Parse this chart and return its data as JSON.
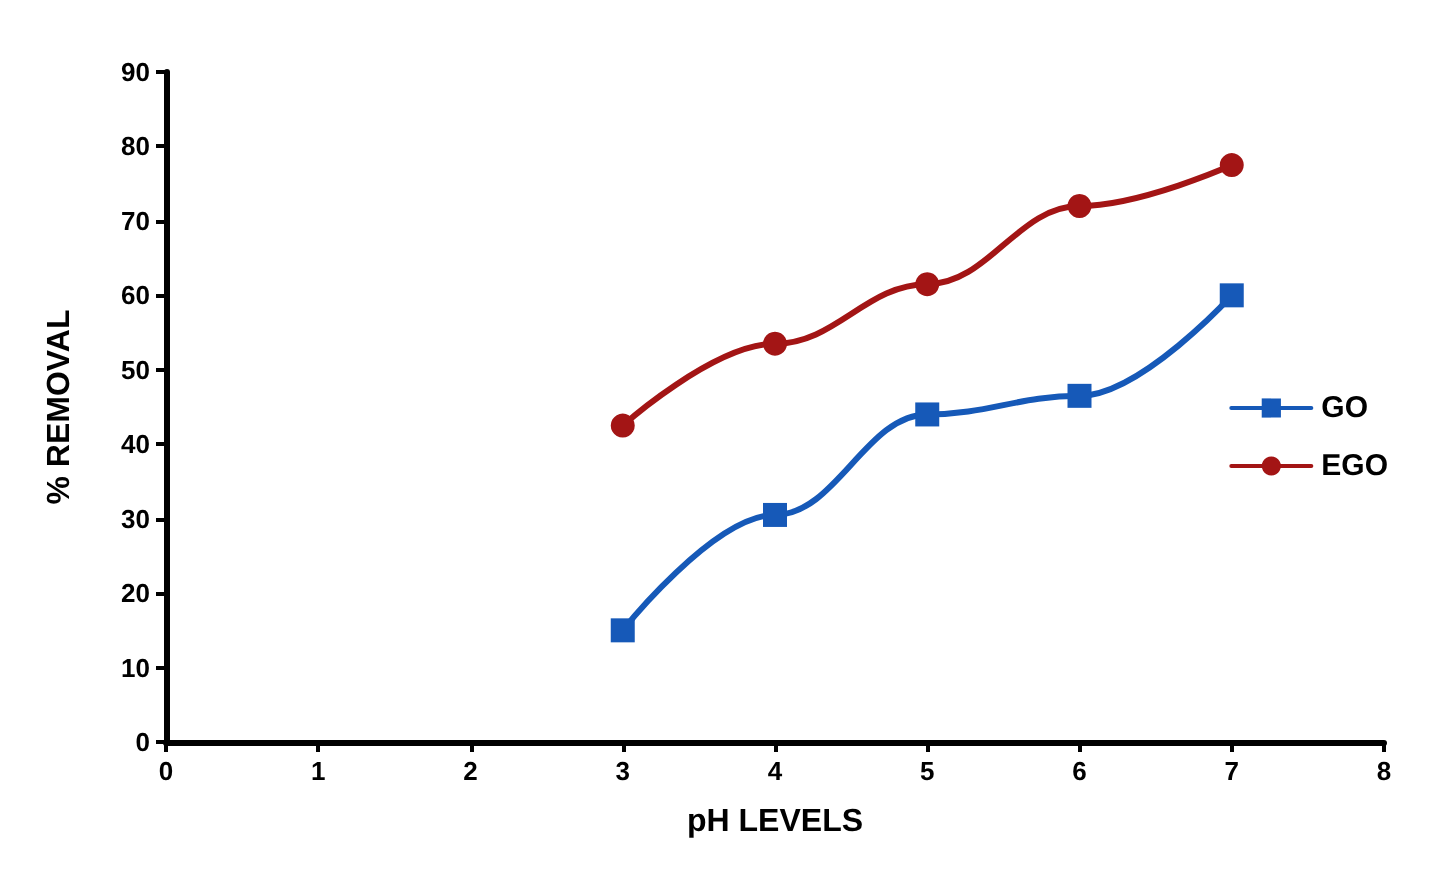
{
  "chart_data": {
    "type": "line",
    "xlabel": "pH LEVELS",
    "ylabel": "% REMOVAL",
    "x": [
      3,
      4,
      5,
      6,
      7
    ],
    "series": [
      {
        "name": "GO",
        "color": "#1659b8",
        "marker": "square",
        "values": [
          15,
          30.5,
          44,
          46.5,
          60
        ]
      },
      {
        "name": "EGO",
        "color": "#a31515",
        "marker": "circle",
        "values": [
          42.5,
          53.5,
          61.5,
          72,
          77.5
        ]
      }
    ],
    "xlim": [
      0,
      8
    ],
    "xticks": [
      0,
      1,
      2,
      3,
      4,
      5,
      6,
      7,
      8
    ],
    "ylim": [
      0,
      90
    ],
    "yticks": [
      0,
      10,
      20,
      30,
      40,
      50,
      60,
      70,
      80,
      90
    ],
    "grid": false,
    "legend": "right",
    "line_style": "solid"
  }
}
